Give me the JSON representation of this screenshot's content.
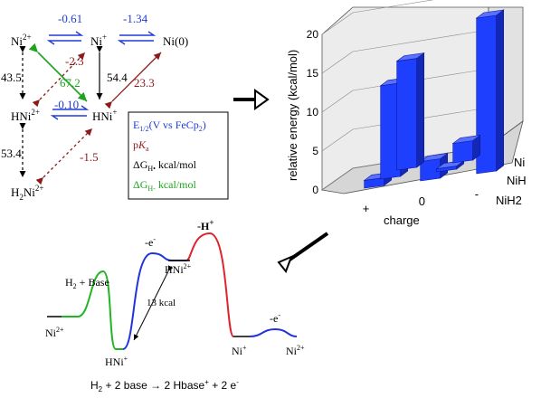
{
  "species": {
    "ni2": "Ni",
    "ni2_sup": "2+",
    "ni1": "Ni",
    "ni1_sup": "+",
    "ni0": "Ni(0)",
    "hni2": "HNi",
    "hni2_sup": "2+",
    "hni1": "HNi",
    "hni1_sup": "+",
    "h2ni2_a": "H",
    "h2ni2_b": "2",
    "h2ni2_c": "Ni",
    "h2ni2_sup": "2+"
  },
  "values": {
    "e_ni2_ni1": "-0.61",
    "e_ni1_ni0": "-1.34",
    "e_hni": "-0.10",
    "pka_ni2": "-2.3",
    "pka_ni1": "23.3",
    "pka_h2ni": "-1.5",
    "dgh_ni2": "43.5",
    "dgh_ni1": "54.4",
    "dgh_hni2": "53.4",
    "dghm": "67.2"
  },
  "legend": {
    "e": "E",
    "e_sub": "1/2",
    "e_rest": "(V vs FeCp",
    "e_sub2": "2",
    "e_end": ")",
    "pka_p": "p",
    "pka_k": "K",
    "pka_a": "a",
    "dgh": "ΔG",
    "dgh_sub": "H•",
    "dgh_rest": " kcal/mol",
    "dghm": "ΔG",
    "dghm_sub": "H-",
    "dghm_rest": " kcal/mol"
  },
  "colors": {
    "e": "#1f3bd6",
    "pka": "#8b1a1a",
    "dghm": "#1fa31f",
    "bar": "#1f3fff"
  },
  "chart_data": {
    "type": "bar",
    "zlabel": "relative energy (kcal/mol)",
    "xlabel": "charge",
    "x_categories": [
      "+",
      "0",
      "-"
    ],
    "y_categories": [
      "Ni",
      "NiH",
      "NiH2"
    ],
    "zlim": [
      0,
      20
    ],
    "zticks": [
      "0",
      "5",
      "10",
      "15",
      "20"
    ],
    "grid": true,
    "bars": [
      {
        "charge": "+",
        "species": "NiH2",
        "value": 14
      },
      {
        "charge": "+",
        "species": "NiH",
        "value": 12
      },
      {
        "charge": "+",
        "species": "Ni",
        "value": 1
      },
      {
        "charge": "0",
        "species": "NiH2",
        "value": 2.5
      },
      {
        "charge": "0",
        "species": "NiH",
        "value": 0
      },
      {
        "charge": "0",
        "species": "Ni",
        "value": 2.5
      },
      {
        "charge": "-",
        "species": "Ni",
        "value": 20
      }
    ]
  },
  "profile": {
    "h2_base": "H",
    "h2_base_sub": "2",
    "h2_base_rest": " + Base",
    "e_minus_1": "-e",
    "e_minus_1_sup": "-",
    "h_plus": "-H",
    "h_plus_sup": "+",
    "hni2": "HNi",
    "hni2_sup": "2+",
    "kcal": "13 kcal",
    "e_minus_2": "-e",
    "e_minus_2_sup": "-",
    "ni2_left": "Ni",
    "ni2_left_sup": "2+",
    "hni1": "HNi",
    "hni1_sup": "+",
    "ni1": "Ni",
    "ni1_sup": "+",
    "ni2_right": "Ni",
    "ni2_right_sup": "2+",
    "equation_a": "H",
    "equation_a_sub": "2",
    "equation_b": " + 2 base → 2 Hbase",
    "equation_b_sup": "+",
    "equation_c": " + 2 e",
    "equation_c_sup": "-"
  }
}
